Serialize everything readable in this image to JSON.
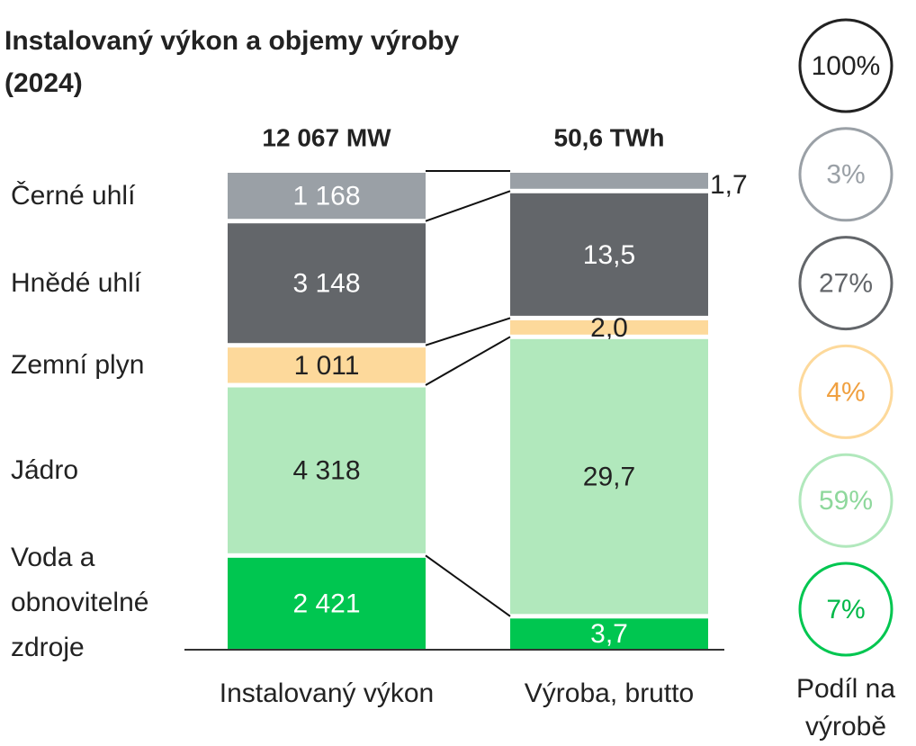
{
  "chart_data": {
    "type": "stacked_bar",
    "title": "Instalovaný výkon a objemy výroby (2024)",
    "categories": [
      "Instalovaný výkon",
      "Výroba, brutto"
    ],
    "totals": [
      {
        "value": 12067,
        "label": "12 067 MW"
      },
      {
        "value": 50.6,
        "label": "50,6 TWh"
      }
    ],
    "series": [
      {
        "name": "Černé uhlí",
        "color": "#9aa0a6",
        "values": [
          1168,
          1.7
        ],
        "value_labels": [
          "1 168",
          "1,7"
        ]
      },
      {
        "name": "Hnědé uhlí",
        "color": "#63666a",
        "values": [
          3148,
          13.5
        ],
        "value_labels": [
          "3 148",
          "13,5"
        ]
      },
      {
        "name": "Zemní plyn",
        "color": "#fdd99b",
        "values": [
          1011,
          2.0
        ],
        "value_labels": [
          "1 011",
          "2,0"
        ]
      },
      {
        "name": "Jádro",
        "color": "#b1e8bc",
        "values": [
          4318,
          29.7
        ],
        "value_labels": [
          "4 318",
          "29,7"
        ]
      },
      {
        "name": "Voda a obnovitelné zdroje",
        "color": "#00c650",
        "values": [
          2421,
          3.7
        ],
        "value_labels": [
          "2 421",
          "3,7"
        ]
      }
    ],
    "shares": {
      "label": "Podíl na výrobě",
      "values": [
        100,
        3,
        27,
        4,
        59,
        7
      ],
      "value_labels": [
        "100%",
        "3%",
        "27%",
        "4%",
        "59%",
        "7%"
      ],
      "colors": [
        "#222222",
        "#9aa0a6",
        "#63666a",
        "#fdd99b",
        "#b1e8bc",
        "#00c650"
      ],
      "text_colors": [
        "#222222",
        "#9aa0a6",
        "#63666a",
        "#f0a040",
        "#8ed89c",
        "#00b848"
      ]
    }
  }
}
